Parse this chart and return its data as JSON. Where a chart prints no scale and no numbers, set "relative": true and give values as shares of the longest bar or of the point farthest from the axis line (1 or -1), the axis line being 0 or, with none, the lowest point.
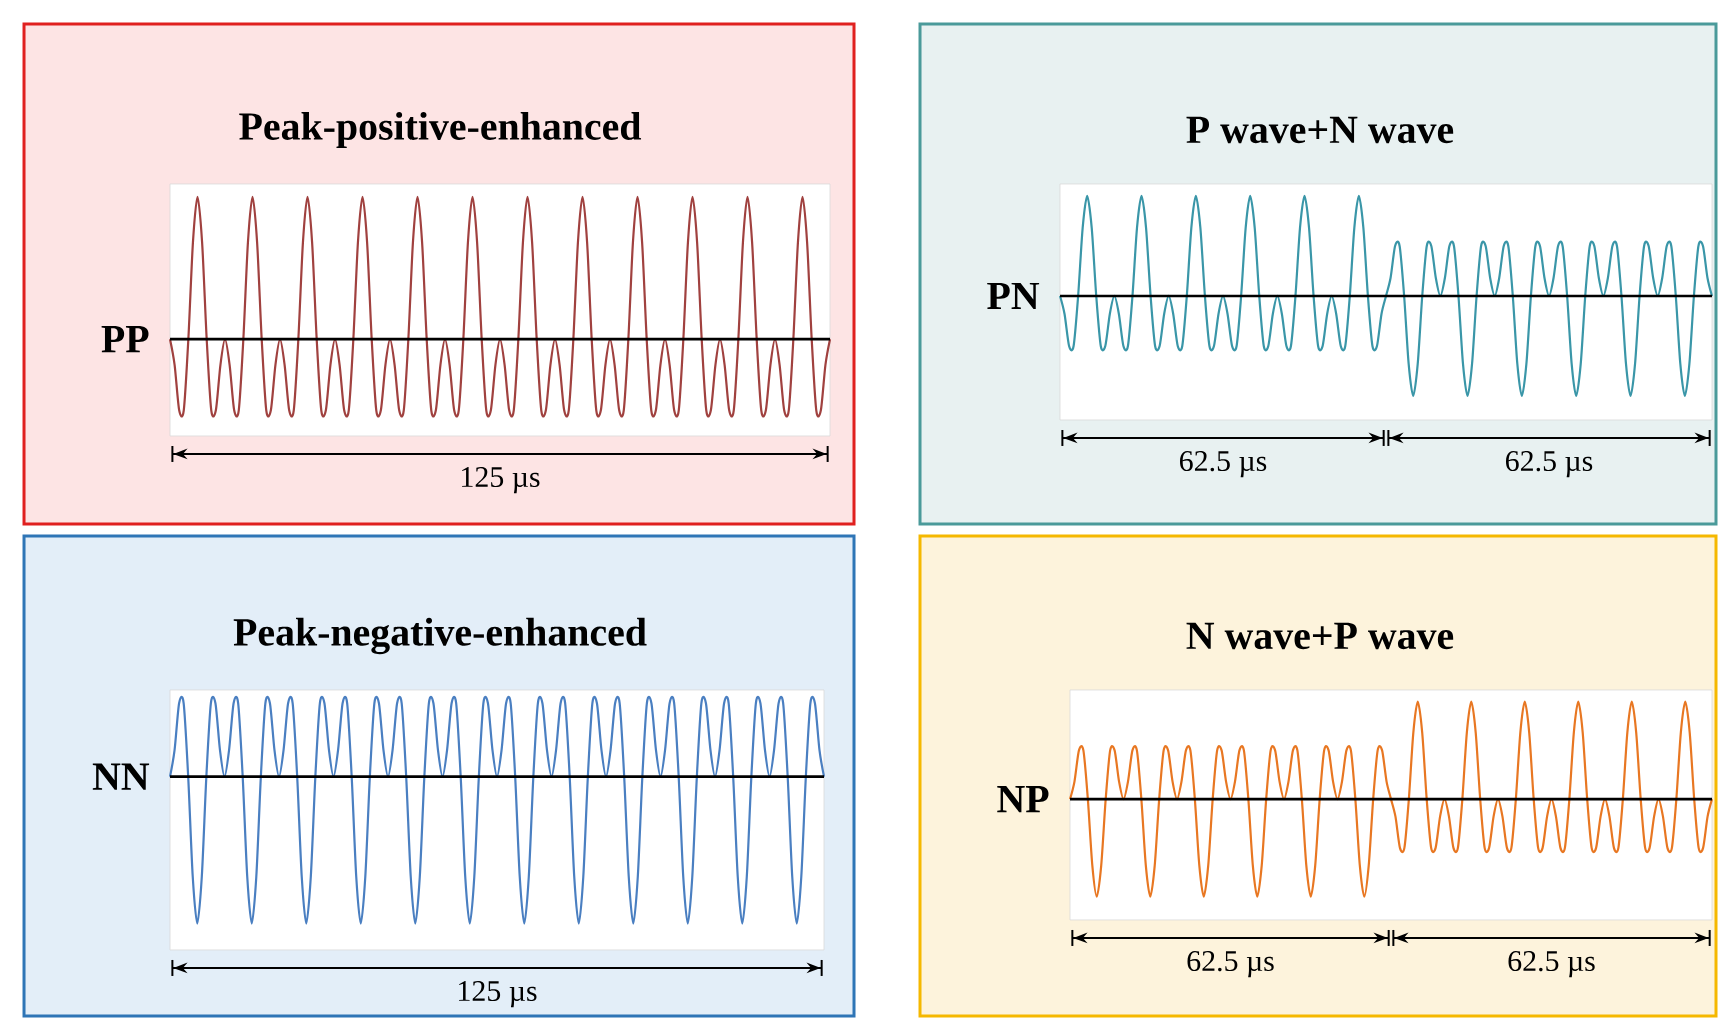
{
  "chart_data": [
    {
      "type": "line",
      "relative": true,
      "title": "Peak-positive-enhanced",
      "ylabel": "PP",
      "annotations": [
        "125 µs"
      ],
      "categories": [
        null,
        null,
        null,
        null,
        null,
        null,
        null,
        null,
        null,
        null,
        null,
        null,
        null,
        null,
        null,
        null,
        null,
        null,
        null,
        null,
        null,
        null,
        null,
        null,
        null,
        null,
        null,
        null,
        null,
        null,
        null,
        null,
        null,
        null,
        null,
        null,
        null,
        null,
        null,
        null,
        null,
        null,
        null,
        null,
        null,
        null,
        null,
        null,
        null,
        null,
        null,
        null,
        null,
        null,
        null,
        null,
        null,
        null,
        null,
        null,
        null,
        null,
        null,
        null,
        null,
        null,
        null,
        null,
        null,
        null,
        null,
        null,
        null,
        null,
        null,
        null,
        null,
        null,
        null,
        null,
        null,
        null,
        null,
        null,
        null,
        null,
        null,
        null,
        null,
        null,
        null,
        null,
        null,
        null,
        null,
        null,
        null,
        null,
        null,
        null,
        null,
        null,
        null,
        null,
        null,
        null,
        null,
        null,
        null,
        null,
        null,
        null,
        null,
        null,
        null,
        null,
        null,
        null,
        null,
        null,
        null,
        null,
        null,
        null,
        null,
        null,
        null,
        null,
        null,
        null,
        null,
        null,
        null,
        null,
        null,
        null,
        null,
        null,
        null,
        null,
        null,
        null,
        null,
        null,
        null
      ],
      "series": [
        {
          "color": "#a0413f",
          "values": [
            0,
            -0.18,
            -0.5,
            -0.5,
            0,
            0.68,
            1,
            0.68,
            0,
            -0.5,
            -0.5,
            -0.18,
            0,
            -0.18,
            -0.5,
            -0.5,
            0,
            0.68,
            1,
            0.68,
            0,
            -0.5,
            -0.5,
            -0.18,
            0,
            -0.18,
            -0.5,
            -0.5,
            0,
            0.68,
            1,
            0.68,
            0,
            -0.5,
            -0.5,
            -0.18,
            0,
            -0.18,
            -0.5,
            -0.5,
            0,
            0.68,
            1,
            0.68,
            0,
            -0.5,
            -0.5,
            -0.18,
            0,
            -0.18,
            -0.5,
            -0.5,
            0,
            0.68,
            1,
            0.68,
            0,
            -0.5,
            -0.5,
            -0.18,
            0,
            -0.18,
            -0.5,
            -0.5,
            0,
            0.68,
            1,
            0.68,
            0,
            -0.5,
            -0.5,
            -0.18,
            0,
            -0.18,
            -0.5,
            -0.5,
            0,
            0.68,
            1,
            0.68,
            0,
            -0.5,
            -0.5,
            -0.18,
            0,
            -0.18,
            -0.5,
            -0.5,
            0,
            0.68,
            1,
            0.68,
            0,
            -0.5,
            -0.5,
            -0.18,
            0,
            -0.18,
            -0.5,
            -0.5,
            0,
            0.68,
            1,
            0.68,
            0,
            -0.5,
            -0.5,
            -0.18,
            0,
            -0.18,
            -0.5,
            -0.5,
            0,
            0.68,
            1,
            0.68,
            0,
            -0.5,
            -0.5,
            -0.18,
            0,
            -0.18,
            -0.5,
            -0.5,
            0,
            0.68,
            1,
            0.68,
            0,
            -0.5,
            -0.5,
            -0.18,
            0,
            -0.18,
            -0.5,
            -0.5,
            0,
            0.68,
            1,
            0.68,
            0,
            -0.5,
            -0.5,
            -0.18,
            0
          ]
        }
      ]
    },
    {
      "type": "line",
      "relative": true,
      "title": "P wave+N wave",
      "ylabel": "PN",
      "annotations": [
        "62.5 µs",
        "62.5 µs"
      ],
      "categories": [
        null,
        null,
        null,
        null,
        null,
        null,
        null,
        null,
        null,
        null,
        null,
        null,
        null,
        null,
        null,
        null,
        null,
        null,
        null,
        null,
        null,
        null,
        null,
        null,
        null,
        null,
        null,
        null,
        null,
        null,
        null,
        null,
        null,
        null,
        null,
        null,
        null,
        null,
        null,
        null,
        null,
        null,
        null,
        null,
        null,
        null,
        null,
        null,
        null,
        null,
        null,
        null,
        null,
        null,
        null,
        null,
        null,
        null,
        null,
        null,
        null,
        null,
        null,
        null,
        null,
        null,
        null,
        null,
        null,
        null,
        null,
        null,
        null,
        null,
        null,
        null,
        null,
        null,
        null,
        null,
        null,
        null,
        null,
        null,
        null,
        null,
        null,
        null,
        null,
        null,
        null,
        null,
        null,
        null,
        null,
        null,
        null,
        null,
        null,
        null,
        null,
        null,
        null,
        null,
        null,
        null,
        null,
        null,
        null,
        null,
        null,
        null,
        null,
        null,
        null,
        null,
        null,
        null,
        null,
        null,
        null,
        null,
        null,
        null,
        null,
        null,
        null,
        null,
        null,
        null,
        null,
        null,
        null,
        null,
        null,
        null,
        null,
        null,
        null,
        null,
        null,
        null,
        null,
        null,
        null
      ],
      "series": [
        {
          "color": "#3a96a8",
          "values": [
            0,
            -0.18,
            -0.5,
            -0.5,
            0,
            0.68,
            1,
            0.68,
            0,
            -0.5,
            -0.5,
            -0.18,
            0,
            -0.18,
            -0.5,
            -0.5,
            0,
            0.68,
            1,
            0.68,
            0,
            -0.5,
            -0.5,
            -0.18,
            0,
            -0.18,
            -0.5,
            -0.5,
            0,
            0.68,
            1,
            0.68,
            0,
            -0.5,
            -0.5,
            -0.18,
            0,
            -0.18,
            -0.5,
            -0.5,
            0,
            0.68,
            1,
            0.68,
            0,
            -0.5,
            -0.5,
            -0.18,
            0,
            -0.18,
            -0.5,
            -0.5,
            0,
            0.68,
            1,
            0.68,
            0,
            -0.5,
            -0.5,
            -0.18,
            0,
            -0.18,
            -0.5,
            -0.5,
            0,
            0.68,
            1,
            0.68,
            0,
            -0.5,
            -0.5,
            -0.18,
            0,
            0.18,
            0.5,
            0.5,
            0,
            -0.68,
            -1,
            -0.68,
            0,
            0.5,
            0.5,
            0.18,
            0,
            0.18,
            0.5,
            0.5,
            0,
            -0.68,
            -1,
            -0.68,
            0,
            0.5,
            0.5,
            0.18,
            0,
            0.18,
            0.5,
            0.5,
            0,
            -0.68,
            -1,
            -0.68,
            0,
            0.5,
            0.5,
            0.18,
            0,
            0.18,
            0.5,
            0.5,
            0,
            -0.68,
            -1,
            -0.68,
            0,
            0.5,
            0.5,
            0.18,
            0,
            0.18,
            0.5,
            0.5,
            0,
            -0.68,
            -1,
            -0.68,
            0,
            0.5,
            0.5,
            0.18,
            0,
            0.18,
            0.5,
            0.5,
            0,
            -0.68,
            -1,
            -0.68,
            0,
            0.5,
            0.5,
            0.18,
            0
          ]
        }
      ]
    },
    {
      "type": "line",
      "relative": true,
      "title": "Peak-negative-enhanced",
      "ylabel": "NN",
      "annotations": [
        "125 µs"
      ],
      "categories": [
        null,
        null,
        null,
        null,
        null,
        null,
        null,
        null,
        null,
        null,
        null,
        null,
        null,
        null,
        null,
        null,
        null,
        null,
        null,
        null,
        null,
        null,
        null,
        null,
        null,
        null,
        null,
        null,
        null,
        null,
        null,
        null,
        null,
        null,
        null,
        null,
        null,
        null,
        null,
        null,
        null,
        null,
        null,
        null,
        null,
        null,
        null,
        null,
        null,
        null,
        null,
        null,
        null,
        null,
        null,
        null,
        null,
        null,
        null,
        null,
        null,
        null,
        null,
        null,
        null,
        null,
        null,
        null,
        null,
        null,
        null,
        null,
        null,
        null,
        null,
        null,
        null,
        null,
        null,
        null,
        null,
        null,
        null,
        null,
        null,
        null,
        null,
        null,
        null,
        null,
        null,
        null,
        null,
        null,
        null,
        null,
        null,
        null,
        null,
        null,
        null,
        null,
        null,
        null,
        null,
        null,
        null,
        null,
        null,
        null,
        null,
        null,
        null,
        null,
        null,
        null,
        null,
        null,
        null,
        null,
        null,
        null,
        null,
        null,
        null,
        null,
        null,
        null,
        null,
        null,
        null,
        null,
        null,
        null,
        null,
        null,
        null,
        null,
        null,
        null,
        null,
        null,
        null,
        null,
        null
      ],
      "series": [
        {
          "color": "#4a7fc1",
          "values": [
            0,
            0.18,
            0.5,
            0.5,
            0,
            -0.68,
            -1,
            -0.68,
            0,
            0.5,
            0.5,
            0.18,
            0,
            0.18,
            0.5,
            0.5,
            0,
            -0.68,
            -1,
            -0.68,
            0,
            0.5,
            0.5,
            0.18,
            0,
            0.18,
            0.5,
            0.5,
            0,
            -0.68,
            -1,
            -0.68,
            0,
            0.5,
            0.5,
            0.18,
            0,
            0.18,
            0.5,
            0.5,
            0,
            -0.68,
            -1,
            -0.68,
            0,
            0.5,
            0.5,
            0.18,
            0,
            0.18,
            0.5,
            0.5,
            0,
            -0.68,
            -1,
            -0.68,
            0,
            0.5,
            0.5,
            0.18,
            0,
            0.18,
            0.5,
            0.5,
            0,
            -0.68,
            -1,
            -0.68,
            0,
            0.5,
            0.5,
            0.18,
            0,
            0.18,
            0.5,
            0.5,
            0,
            -0.68,
            -1,
            -0.68,
            0,
            0.5,
            0.5,
            0.18,
            0,
            0.18,
            0.5,
            0.5,
            0,
            -0.68,
            -1,
            -0.68,
            0,
            0.5,
            0.5,
            0.18,
            0,
            0.18,
            0.5,
            0.5,
            0,
            -0.68,
            -1,
            -0.68,
            0,
            0.5,
            0.5,
            0.18,
            0,
            0.18,
            0.5,
            0.5,
            0,
            -0.68,
            -1,
            -0.68,
            0,
            0.5,
            0.5,
            0.18,
            0,
            0.18,
            0.5,
            0.5,
            0,
            -0.68,
            -1,
            -0.68,
            0,
            0.5,
            0.5,
            0.18,
            0,
            0.18,
            0.5,
            0.5,
            0,
            -0.68,
            -1,
            -0.68,
            0,
            0.5,
            0.5,
            0.18,
            0
          ]
        }
      ]
    },
    {
      "type": "line",
      "relative": true,
      "title": "N wave+P wave",
      "ylabel": "NP",
      "annotations": [
        "62.5 µs",
        "62.5 µs"
      ],
      "categories": [
        null,
        null,
        null,
        null,
        null,
        null,
        null,
        null,
        null,
        null,
        null,
        null,
        null,
        null,
        null,
        null,
        null,
        null,
        null,
        null,
        null,
        null,
        null,
        null,
        null,
        null,
        null,
        null,
        null,
        null,
        null,
        null,
        null,
        null,
        null,
        null,
        null,
        null,
        null,
        null,
        null,
        null,
        null,
        null,
        null,
        null,
        null,
        null,
        null,
        null,
        null,
        null,
        null,
        null,
        null,
        null,
        null,
        null,
        null,
        null,
        null,
        null,
        null,
        null,
        null,
        null,
        null,
        null,
        null,
        null,
        null,
        null,
        null,
        null,
        null,
        null,
        null,
        null,
        null,
        null,
        null,
        null,
        null,
        null,
        null,
        null,
        null,
        null,
        null,
        null,
        null,
        null,
        null,
        null,
        null,
        null,
        null,
        null,
        null,
        null,
        null,
        null,
        null,
        null,
        null,
        null,
        null,
        null,
        null,
        null,
        null,
        null,
        null,
        null,
        null,
        null,
        null,
        null,
        null,
        null,
        null,
        null,
        null,
        null,
        null,
        null,
        null,
        null,
        null,
        null,
        null,
        null,
        null,
        null,
        null,
        null,
        null,
        null,
        null,
        null,
        null,
        null,
        null,
        null,
        null
      ],
      "series": [
        {
          "color": "#e87722",
          "values": [
            0,
            0.18,
            0.5,
            0.5,
            0,
            -0.68,
            -1,
            -0.68,
            0,
            0.5,
            0.5,
            0.18,
            0,
            0.18,
            0.5,
            0.5,
            0,
            -0.68,
            -1,
            -0.68,
            0,
            0.5,
            0.5,
            0.18,
            0,
            0.18,
            0.5,
            0.5,
            0,
            -0.68,
            -1,
            -0.68,
            0,
            0.5,
            0.5,
            0.18,
            0,
            0.18,
            0.5,
            0.5,
            0,
            -0.68,
            -1,
            -0.68,
            0,
            0.5,
            0.5,
            0.18,
            0,
            0.18,
            0.5,
            0.5,
            0,
            -0.68,
            -1,
            -0.68,
            0,
            0.5,
            0.5,
            0.18,
            0,
            0.18,
            0.5,
            0.5,
            0,
            -0.68,
            -1,
            -0.68,
            0,
            0.5,
            0.5,
            0.18,
            0,
            -0.18,
            -0.5,
            -0.5,
            0,
            0.68,
            1,
            0.68,
            0,
            -0.5,
            -0.5,
            -0.18,
            0,
            -0.18,
            -0.5,
            -0.5,
            0,
            0.68,
            1,
            0.68,
            0,
            -0.5,
            -0.5,
            -0.18,
            0,
            -0.18,
            -0.5,
            -0.5,
            0,
            0.68,
            1,
            0.68,
            0,
            -0.5,
            -0.5,
            -0.18,
            0,
            -0.18,
            -0.5,
            -0.5,
            0,
            0.68,
            1,
            0.68,
            0,
            -0.5,
            -0.5,
            -0.18,
            0,
            -0.18,
            -0.5,
            -0.5,
            0,
            0.68,
            1,
            0.68,
            0,
            -0.5,
            -0.5,
            -0.18,
            0,
            -0.18,
            -0.5,
            -0.5,
            0,
            0.68,
            1,
            0.68,
            0,
            -0.5,
            -0.5,
            -0.18,
            0
          ]
        }
      ]
    }
  ]
}
